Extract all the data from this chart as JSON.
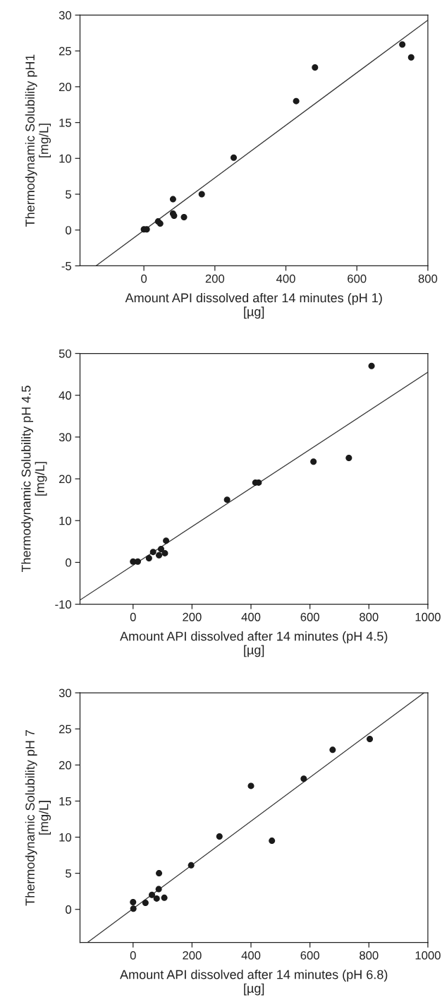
{
  "chart_data": [
    {
      "type": "scatter",
      "xlabel": "Amount API dissolved after 14 minutes (pH 1)\n[µg]",
      "ylabel": "Thermodynamic Solubility pH1\n[mg/L]",
      "xlim": [
        -180,
        800
      ],
      "xticks": [
        0,
        200,
        400,
        600,
        800
      ],
      "ylim": [
        -5,
        30
      ],
      "yticks": [
        -5,
        0,
        5,
        10,
        15,
        20,
        25,
        30
      ],
      "grid": false,
      "series": [
        {
          "marker": "circle",
          "color": "#1a1a1a",
          "x": [
            0,
            8,
            40,
            46,
            82,
            82,
            85,
            113,
            163,
            253,
            429,
            482,
            728,
            753
          ],
          "values": [
            0.1,
            0.1,
            1.2,
            0.9,
            4.3,
            2.3,
            2.0,
            1.8,
            5.0,
            10.1,
            18.0,
            22.7,
            25.9,
            24.1
          ]
        },
        {
          "type": "line",
          "marker": "none",
          "line_style": "solid",
          "color": "#333333",
          "x": [
            -135,
            800
          ],
          "values": [
            -5,
            29.3
          ]
        }
      ]
    },
    {
      "type": "scatter",
      "xlabel": "Amount API dissolved after 14 minutes (pH 4.5)\n[µg]",
      "ylabel": "Thermodynamic Solubility pH 4.5\n[mg/L]",
      "xlim": [
        -180,
        1000
      ],
      "xticks": [
        0,
        200,
        400,
        600,
        800,
        1000
      ],
      "ylim": [
        -10,
        50
      ],
      "yticks": [
        -10,
        0,
        10,
        20,
        30,
        40,
        50
      ],
      "grid": false,
      "series": [
        {
          "marker": "circle",
          "color": "#1a1a1a",
          "x": [
            0,
            16,
            54,
            68,
            88,
            95,
            108,
            112,
            319,
            415,
            426,
            612,
            732,
            809
          ],
          "values": [
            0.2,
            0.2,
            1.0,
            2.5,
            1.7,
            3.2,
            2.2,
            5.2,
            15.0,
            19.1,
            19.1,
            24.1,
            25.0,
            47.0
          ]
        },
        {
          "type": "line",
          "marker": "none",
          "line_style": "solid",
          "color": "#333333",
          "x": [
            -180,
            1000
          ],
          "values": [
            -9.0,
            45.5
          ]
        }
      ]
    },
    {
      "type": "scatter",
      "xlabel": "Amount API dissolved after 14 minutes (pH 6.8)\n[µg]",
      "ylabel": "Thermodynamic Solubility pH 7\n[mg/L]",
      "xlim": [
        -180,
        1000
      ],
      "xticks": [
        0,
        200,
        400,
        600,
        800,
        1000
      ],
      "ylim": [
        -4.6,
        30
      ],
      "yticks": [
        0,
        5,
        10,
        15,
        20,
        25,
        30
      ],
      "grid": false,
      "series": [
        {
          "marker": "circle",
          "color": "#1a1a1a",
          "x": [
            0,
            1,
            42,
            64,
            80,
            87,
            88,
            106,
            197,
            293,
            400,
            471,
            579,
            677,
            803
          ],
          "values": [
            1.0,
            0.1,
            0.9,
            2.0,
            1.5,
            2.8,
            5.0,
            1.6,
            6.1,
            10.1,
            17.1,
            9.5,
            18.1,
            22.1,
            23.6
          ]
        },
        {
          "type": "line",
          "marker": "none",
          "line_style": "solid",
          "color": "#333333",
          "x": [
            -155,
            987
          ],
          "values": [
            -4.6,
            30
          ]
        }
      ]
    }
  ]
}
